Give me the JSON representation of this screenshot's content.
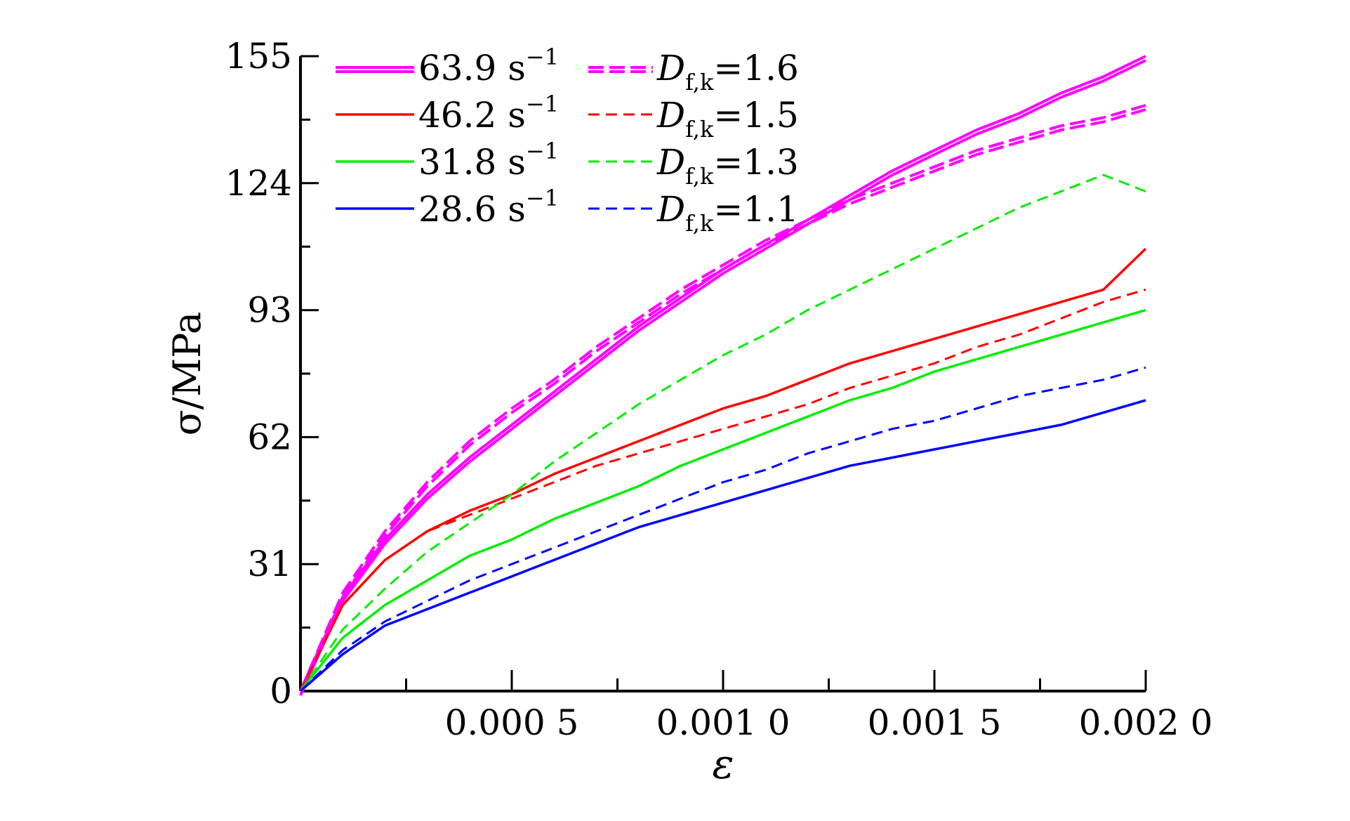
{
  "chart_data": {
    "type": "line",
    "xlabel": "ε",
    "ylabel": "σ/MPa",
    "xlim": [
      0,
      0.002
    ],
    "ylim": [
      0,
      155
    ],
    "grid": false,
    "legend_placement": "top-left",
    "x_tick_labels": [
      "0.000 5",
      "0.001 0",
      "0.001 5",
      "0.002 0"
    ],
    "x_tick_values": [
      0.0005,
      0.001,
      0.0015,
      0.002
    ],
    "x_minor_ticks": [
      0.00025,
      0.00075,
      0.00125,
      0.00175
    ],
    "y_tick_labels": [
      "0",
      "31",
      "62",
      "93",
      "124",
      "155"
    ],
    "y_tick_values": [
      0,
      31,
      62,
      93,
      124,
      155
    ],
    "y_minor_ticks": [
      15.5,
      46.5,
      77.5,
      108.5,
      139.5
    ],
    "x": [
      0,
      0.0001,
      0.0002,
      0.0003,
      0.0004,
      0.0005,
      0.0006,
      0.0007,
      0.0008,
      0.0009,
      0.001,
      0.0011,
      0.0012,
      0.0013,
      0.0014,
      0.0015,
      0.0016,
      0.0017,
      0.0018,
      0.0019,
      0.002
    ],
    "series": [
      {
        "name": "63.9 s",
        "superscript": "−1",
        "color": "#ff00ff",
        "style": "double",
        "values": [
          0,
          23,
          37,
          48,
          57,
          65,
          73,
          81,
          89,
          96,
          103,
          109,
          115,
          121,
          127,
          132,
          137,
          141,
          146,
          150,
          155
        ]
      },
      {
        "name": "46.2 s",
        "superscript": "−1",
        "color": "#ff0000",
        "style": "solid",
        "values": [
          0,
          21,
          32,
          39,
          44,
          48,
          53,
          57,
          61,
          65,
          69,
          72,
          76,
          80,
          83,
          86,
          89,
          92,
          95,
          98,
          108
        ]
      },
      {
        "name": "31.8 s",
        "superscript": "−1",
        "color": "#00ee00",
        "style": "solid",
        "values": [
          0,
          13,
          21,
          27,
          33,
          37,
          42,
          46,
          50,
          55,
          59,
          63,
          67,
          71,
          74,
          78,
          81,
          84,
          87,
          90,
          93
        ]
      },
      {
        "name": "28.6 s",
        "superscript": "−1",
        "color": "#0000ff",
        "style": "solid",
        "values": [
          0,
          9,
          16,
          20,
          24,
          28,
          32,
          36,
          40,
          43,
          46,
          49,
          52,
          55,
          57,
          59,
          61,
          63,
          65,
          68,
          71
        ]
      },
      {
        "name": "D",
        "subscript": "f,k",
        "suffix": "=1.6",
        "color": "#ff00ff",
        "style": "double-dash",
        "values": [
          0,
          24,
          39,
          51,
          61,
          69,
          76,
          84,
          91,
          98,
          104,
          110,
          115,
          120,
          124,
          128,
          132,
          135,
          138,
          140,
          143
        ]
      },
      {
        "name": "D",
        "subscript": "f,k",
        "suffix": "=1.5",
        "color": "#ff0000",
        "style": "dashed",
        "values": [
          0,
          21,
          32,
          39,
          43,
          47,
          51,
          55,
          58,
          61,
          64,
          67,
          70,
          74,
          77,
          80,
          84,
          87,
          91,
          95,
          98
        ]
      },
      {
        "name": "D",
        "subscript": "f,k",
        "suffix": "=1.3",
        "color": "#00ee00",
        "style": "dashed",
        "values": [
          0,
          15,
          25,
          34,
          41,
          48,
          56,
          63,
          70,
          76,
          82,
          87,
          93,
          98,
          103,
          108,
          113,
          118,
          122,
          126,
          122
        ]
      },
      {
        "name": "D",
        "subscript": "f,k",
        "suffix": "=1.1",
        "color": "#0000ff",
        "style": "dashed",
        "values": [
          0,
          10,
          17,
          22,
          27,
          31,
          35,
          39,
          43,
          47,
          51,
          54,
          58,
          61,
          64,
          66,
          69,
          72,
          74,
          76,
          79
        ]
      }
    ]
  }
}
